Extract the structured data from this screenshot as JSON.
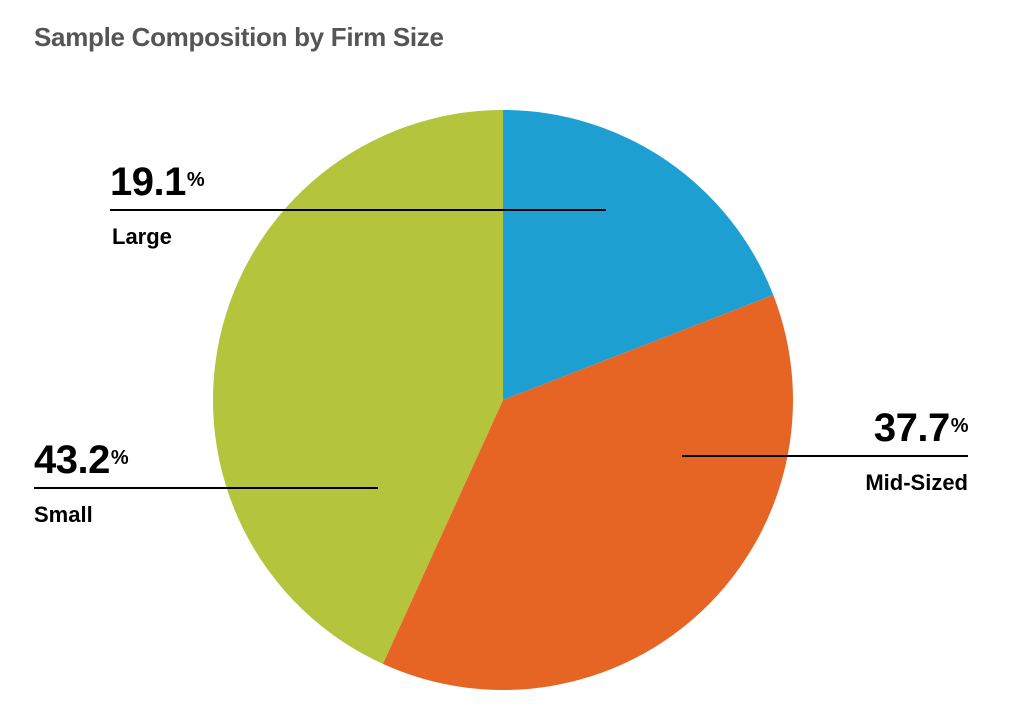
{
  "chart_data": {
    "type": "pie",
    "title": "Sample Composition by Firm Size",
    "slices": [
      {
        "label": "Large",
        "value": 19.1,
        "display": "19.1",
        "color": "#1da0d1"
      },
      {
        "label": "Mid-Sized",
        "value": 37.7,
        "display": "37.7",
        "color": "#e76524"
      },
      {
        "label": "Small",
        "value": 43.2,
        "display": "43.2",
        "color": "#b5c43d"
      }
    ],
    "percent_symbol": "%",
    "start_angle": "12 o'clock",
    "direction": "clockwise",
    "legend": "none",
    "leader_color": "#000000"
  }
}
